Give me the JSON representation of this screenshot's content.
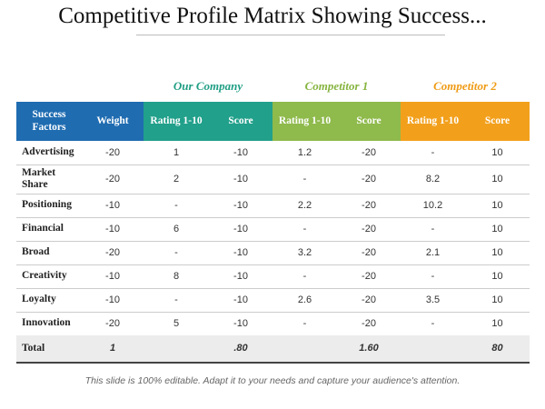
{
  "title": "Competitive  Profile Matrix Showing Success...",
  "table": {
    "groups": [
      "Our Company",
      "Competitor 1",
      "Competitor 2"
    ],
    "columns": [
      "Success Factors",
      "Weight",
      "Rating 1-10",
      "Score",
      "Rating 1-10",
      "Score",
      "Rating 1-10",
      "Score"
    ],
    "rows": [
      {
        "label": "Advertising",
        "cells": [
          "-20",
          "1",
          "-10",
          "1.2",
          "-20",
          "-",
          "10"
        ]
      },
      {
        "label": "Market Share",
        "cells": [
          "-20",
          "2",
          "-10",
          "-",
          "-20",
          "8.2",
          "10"
        ]
      },
      {
        "label": "Positioning",
        "cells": [
          "-10",
          "-",
          "-10",
          "2.2",
          "-20",
          "10.2",
          "10"
        ]
      },
      {
        "label": "Financial",
        "cells": [
          "-10",
          "6",
          "-10",
          "-",
          "-20",
          "-",
          "10"
        ]
      },
      {
        "label": "Broad",
        "cells": [
          "-20",
          "-",
          "-10",
          "3.2",
          "-20",
          "2.1",
          "10"
        ]
      },
      {
        "label": "Creativity",
        "cells": [
          "-10",
          "8",
          "-10",
          "-",
          "-20",
          "-",
          "10"
        ]
      },
      {
        "label": "Loyalty",
        "cells": [
          "-10",
          "-",
          "-10",
          "2.6",
          "-20",
          "3.5",
          "10"
        ]
      },
      {
        "label": "Innovation",
        "cells": [
          "-20",
          "5",
          "-10",
          "-",
          "-20",
          "-",
          "10"
        ]
      }
    ],
    "total": {
      "label": "Total",
      "cells": [
        "1",
        null,
        ".80",
        null,
        "1.60",
        null,
        "80"
      ]
    }
  },
  "footer": "This slide is 100% editable. Adapt it to your needs and capture your audience's attention."
}
